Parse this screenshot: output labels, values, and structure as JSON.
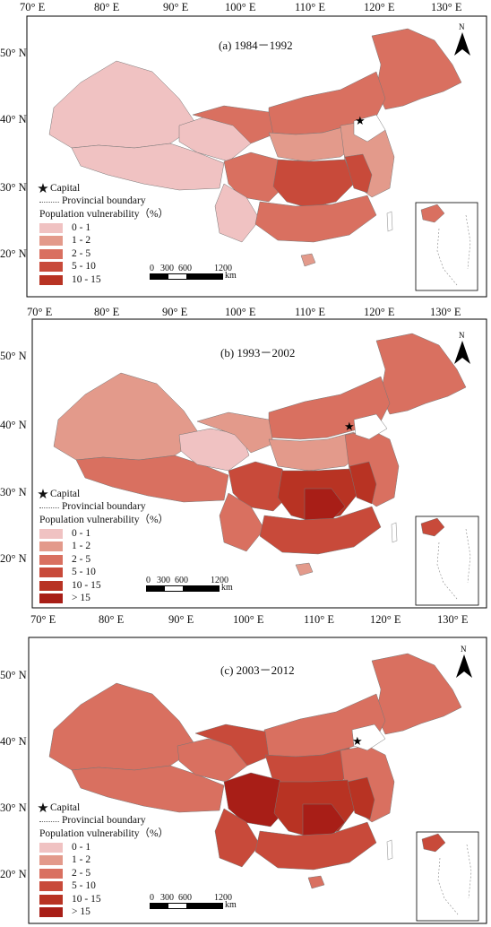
{
  "axes": {
    "x_ticks": [
      "70° E",
      "80° E",
      "90° E",
      "100° E",
      "110° E",
      "120° E",
      "130° E"
    ],
    "y_ticks": [
      "50° N",
      "40° N",
      "30° N",
      "20° N"
    ]
  },
  "legend_common": {
    "capital": "Capital",
    "provincial": "Provincial boundary",
    "title": "Population vulnerability（%）"
  },
  "colors": {
    "0-1": "#f0c2c2",
    "1-2": "#e39a8b",
    "2-5": "#d97060",
    "5-10": "#c84a3a",
    ">5 dark": "#b83323",
    ">15": "#a81e17"
  },
  "scale": {
    "ticks": [
      "0",
      "300",
      "600",
      "1200"
    ],
    "unit": "km"
  },
  "north_label": "N",
  "panels": [
    {
      "title": "(a) 1984－1992",
      "classes": [
        "0 - 1",
        "1 - 2",
        "2 - 5",
        "5 - 10",
        "10 - 15"
      ],
      "class_colors": [
        "#f0c2c2",
        "#e39a8b",
        "#d97060",
        "#c84a3a",
        "#b83323"
      ]
    },
    {
      "title": "(b) 1993－2002",
      "classes": [
        "0 - 1",
        "1 - 2",
        "2 - 5",
        "5 - 10",
        "10 - 15",
        "> 15"
      ],
      "class_colors": [
        "#f0c2c2",
        "#e39a8b",
        "#d97060",
        "#c84a3a",
        "#b83323",
        "#a81e17"
      ]
    },
    {
      "title": "(c) 2003－2012",
      "classes": [
        "0 - 1",
        "1 - 2",
        "2 - 5",
        "5 - 10",
        "10 - 15",
        "> 15"
      ],
      "class_colors": [
        "#f0c2c2",
        "#e39a8b",
        "#d97060",
        "#c84a3a",
        "#b83323",
        "#a81e17"
      ]
    }
  ]
}
